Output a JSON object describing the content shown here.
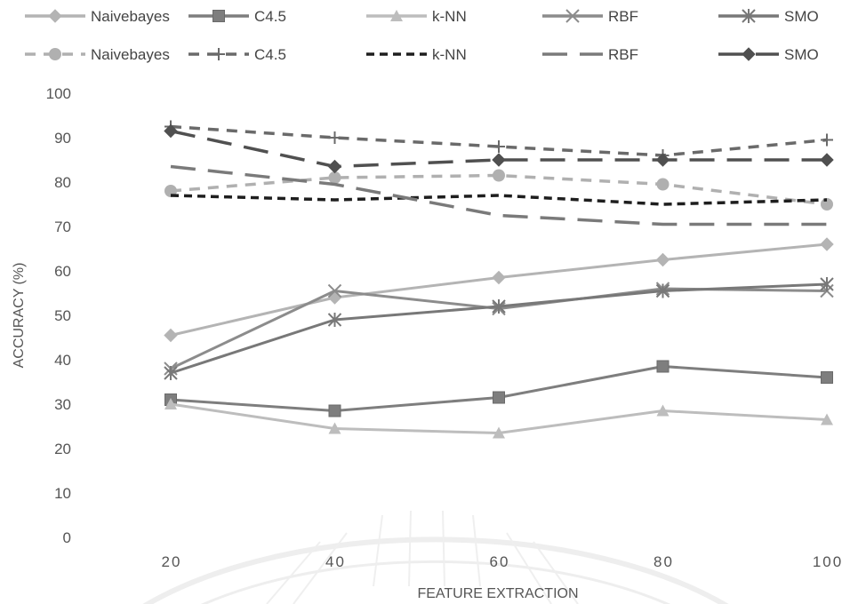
{
  "chart_data": {
    "type": "line",
    "xlabel": "FEATURE EXTRACTION",
    "ylabel": "ACCURACY (%)",
    "x": [
      20,
      40,
      60,
      80,
      100
    ],
    "ylim": [
      0,
      100
    ],
    "yticks": [
      0,
      10,
      20,
      30,
      40,
      50,
      60,
      70,
      80,
      90,
      100
    ],
    "grid": false,
    "legend_position": "top",
    "series": [
      {
        "name": "Naivebayes",
        "values": [
          45.5,
          54,
          58.5,
          62.5,
          66
        ],
        "color": "#b4b4b4",
        "dash": "solid",
        "marker": "diamond"
      },
      {
        "name": "C4.5",
        "values": [
          31,
          28.5,
          31.5,
          38.5,
          36
        ],
        "color": "#7e7e7e",
        "dash": "solid",
        "marker": "square"
      },
      {
        "name": "k-NN",
        "values": [
          30,
          24.5,
          23.5,
          28.5,
          26.5
        ],
        "color": "#bdbdbd",
        "dash": "solid",
        "marker": "triangle"
      },
      {
        "name": "RBF",
        "values": [
          38,
          55.5,
          51.5,
          56,
          55.5
        ],
        "color": "#8c8c8c",
        "dash": "solid",
        "marker": "x"
      },
      {
        "name": "SMO",
        "values": [
          37,
          49,
          52,
          55.5,
          57
        ],
        "color": "#787878",
        "dash": "solid",
        "marker": "star"
      },
      {
        "name": "Naivebayes",
        "values": [
          78,
          81,
          81.5,
          79.5,
          75
        ],
        "color": "#b0b0b0",
        "dash": "medium",
        "marker": "circle"
      },
      {
        "name": "C4.5",
        "values": [
          92.5,
          90,
          88,
          86,
          89.5
        ],
        "color": "#6a6a6a",
        "dash": "medium",
        "marker": "plus"
      },
      {
        "name": "k-NN",
        "values": [
          77,
          76,
          77,
          75,
          76
        ],
        "color": "#1e1e1e",
        "dash": "short",
        "marker": "none"
      },
      {
        "name": "RBF",
        "values": [
          83.5,
          79.5,
          72.5,
          70.5,
          70.5
        ],
        "color": "#7a7a7a",
        "dash": "long",
        "marker": "none"
      },
      {
        "name": "SMO",
        "values": [
          91.5,
          83.5,
          85,
          85,
          85
        ],
        "color": "#505050",
        "dash": "long",
        "marker": "diamond"
      }
    ]
  }
}
